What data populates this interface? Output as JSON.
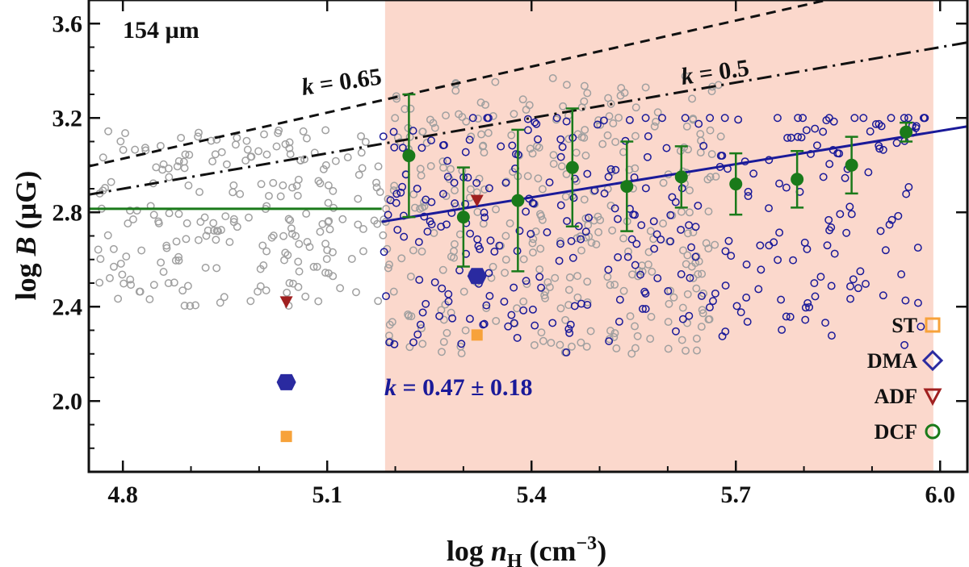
{
  "chart_data": {
    "type": "scatter",
    "wavelength_label": "154 µm",
    "xlabel": {
      "prefix": "log ",
      "var": "n",
      "sub": "H",
      "unit": " (cm",
      "sup": "−3",
      "close": ")"
    },
    "ylabel": {
      "prefix": "log ",
      "var": "B",
      "unit": " (µG)"
    },
    "xlim": [
      4.75,
      6.04
    ],
    "ylim": [
      1.7,
      3.7
    ],
    "xticks": [
      4.8,
      5.1,
      5.4,
      5.7,
      6.0
    ],
    "xtick_labels": [
      "4.8",
      "5.1",
      "5.4",
      "5.7",
      "6.0"
    ],
    "yticks": [
      2.0,
      2.4,
      2.8,
      3.2,
      3.6
    ],
    "ytick_labels": [
      "2.0",
      "2.4",
      "2.8",
      "3.2",
      "3.6"
    ],
    "shaded_region": {
      "x": [
        5.185,
        5.99
      ],
      "color": "#fbd8cc"
    },
    "colors": {
      "gray_points": "#a0a0a0",
      "blue_points": "#1a1a99",
      "fit_line": "#1a1a99",
      "green": "#1a7a1a",
      "st": "#f7a23a",
      "dma": "#2a2aa0",
      "adf": "#a02020"
    },
    "reference_lines": [
      {
        "name": "k = 0.65",
        "style": "dashed",
        "label_k": "k",
        "label_value": " = 0.65",
        "x": [
          4.75,
          6.04
        ],
        "y": [
          2.995,
          3.834
        ]
      },
      {
        "name": "k = 0.5",
        "style": "dashdot",
        "label_k": "k",
        "label_value": " = 0.5",
        "x": [
          4.75,
          6.04
        ],
        "y": [
          2.875,
          3.52
        ]
      }
    ],
    "flat_line": {
      "x": [
        4.75,
        5.18
      ],
      "y": 2.815
    },
    "fit": {
      "label_k": "k",
      "label_value": " = 0.47 ± 0.18",
      "x": [
        5.18,
        6.04
      ],
      "y": [
        2.76,
        3.164
      ]
    },
    "binned_dcf": {
      "x": [
        5.22,
        5.3,
        5.38,
        5.46,
        5.54,
        5.62,
        5.7,
        5.79,
        5.87,
        5.95
      ],
      "y": [
        3.04,
        2.78,
        2.85,
        2.99,
        2.91,
        2.95,
        2.92,
        2.94,
        3.0,
        3.14
      ],
      "err": [
        0.26,
        0.21,
        0.3,
        0.25,
        0.19,
        0.13,
        0.13,
        0.12,
        0.12,
        0.04
      ]
    },
    "special_points": {
      "st": [
        {
          "x": 5.04,
          "y": 1.85
        },
        {
          "x": 5.32,
          "y": 2.28
        }
      ],
      "dma": [
        {
          "x": 5.04,
          "y": 2.08
        },
        {
          "x": 5.32,
          "y": 2.53
        }
      ],
      "adf": [
        {
          "x": 5.04,
          "y": 2.42
        },
        {
          "x": 5.32,
          "y": 2.85
        }
      ]
    },
    "legend": {
      "position": "bottom-right",
      "entries": [
        {
          "label": "ST",
          "marker": "square"
        },
        {
          "label": "DMA",
          "marker": "diamond"
        },
        {
          "label": "ADF",
          "marker": "triangle"
        },
        {
          "label": "DCF",
          "marker": "circle"
        }
      ]
    },
    "scatter_generation": {
      "gray": {
        "n_low": 220,
        "x_low": [
          4.76,
          5.185
        ],
        "y_low": [
          2.4,
          3.15
        ],
        "n_high": 330,
        "x_high": [
          5.185,
          5.68
        ],
        "y_high": [
          2.2,
          3.38
        ]
      },
      "blue": {
        "n": 330,
        "x": [
          5.18,
          5.98
        ],
        "y": [
          2.2,
          3.2
        ]
      }
    }
  }
}
